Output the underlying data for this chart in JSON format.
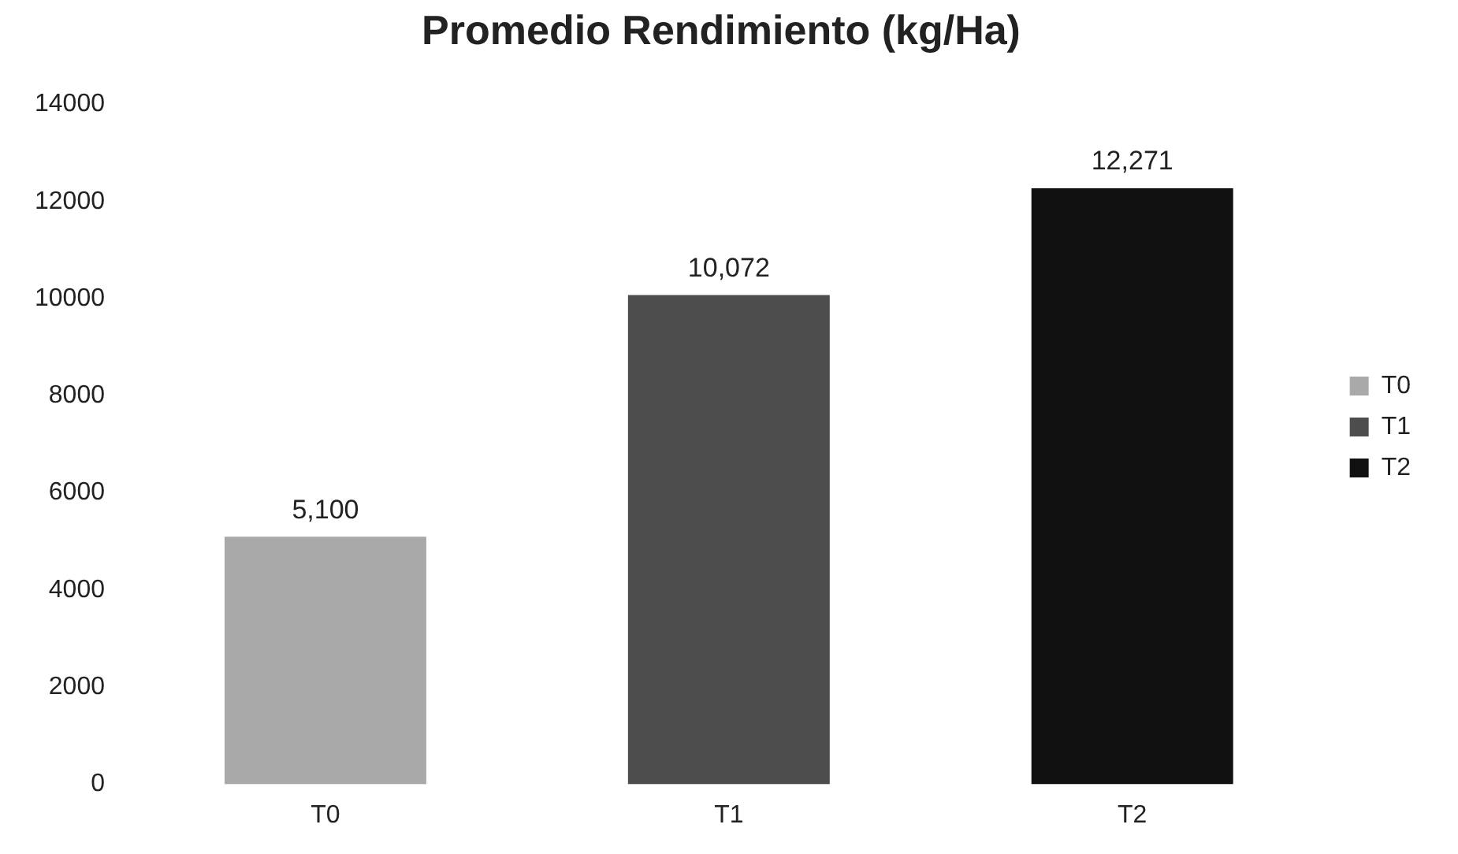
{
  "chart_data": {
    "type": "bar",
    "title": "Promedio Rendimiento (kg/Ha)",
    "categories": [
      "T0",
      "T1",
      "T2"
    ],
    "series": [
      {
        "name": "T0",
        "color": "#a9a9a9",
        "values": [
          5100,
          null,
          null
        ],
        "value_labels": [
          "5,100",
          null,
          null
        ]
      },
      {
        "name": "T1",
        "color": "#4d4d4d",
        "values": [
          null,
          10072,
          null
        ],
        "value_labels": [
          null,
          "10,072",
          null
        ]
      },
      {
        "name": "T2",
        "color": "#111111",
        "values": [
          null,
          null,
          12271
        ],
        "value_labels": [
          null,
          null,
          "12,271"
        ]
      }
    ],
    "ylim": [
      0,
      14000
    ],
    "yticks": [
      0,
      2000,
      4000,
      6000,
      8000,
      10000,
      12000,
      14000
    ],
    "grid": false,
    "legend": "right"
  }
}
